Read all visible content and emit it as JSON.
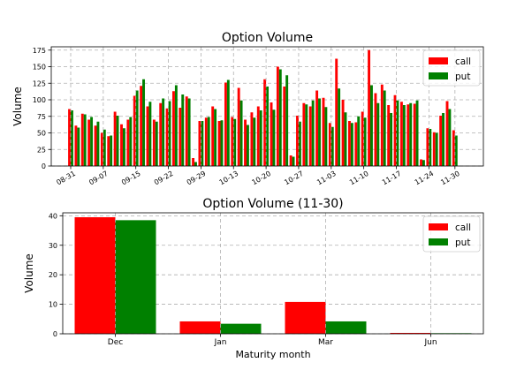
{
  "chart_data": [
    {
      "type": "bar",
      "title": "Option Volume",
      "xlabel": "",
      "ylabel": "Volume",
      "ylim": [
        0,
        180
      ],
      "yticks": [
        0,
        25,
        50,
        75,
        100,
        125,
        150,
        175
      ],
      "grid": true,
      "legend_position": "top-right",
      "colors": {
        "call": "#ff0000",
        "put": "#008000"
      },
      "x_start": "08-31",
      "x_tick_labels": [
        "08-31",
        "09-07",
        "09-15",
        "09-22",
        "09-29",
        "10-13",
        "10-20",
        "10-27",
        "11-03",
        "11-10",
        "11-17",
        "11-24",
        "11-30"
      ],
      "series": [
        {
          "name": "call",
          "values": [
            86,
            61,
            79,
            70,
            61,
            50,
            45,
            82,
            63,
            70,
            106,
            121,
            90,
            70,
            95,
            87,
            113,
            88,
            105,
            12,
            68,
            73,
            90,
            68,
            126,
            74,
            118,
            70,
            81,
            90,
            131,
            96,
            150,
            120,
            16,
            76,
            95,
            90,
            114,
            103,
            65,
            162,
            100,
            68,
            66,
            82,
            175,
            110,
            123,
            92,
            107,
            97,
            93,
            94,
            10,
            57,
            51,
            76,
            98,
            54
          ]
        },
        {
          "name": "put",
          "values": [
            84,
            58,
            78,
            74,
            67,
            55,
            46,
            76,
            57,
            74,
            114,
            131,
            97,
            67,
            102,
            98,
            122,
            108,
            102,
            6,
            68,
            74,
            86,
            69,
            130,
            71,
            99,
            62,
            73,
            84,
            120,
            85,
            146,
            137,
            14,
            67,
            93,
            99,
            102,
            89,
            59,
            117,
            81,
            65,
            75,
            73,
            122,
            95,
            114,
            80,
            99,
            92,
            95,
            99,
            9,
            56,
            50,
            80,
            86,
            46
          ]
        }
      ]
    },
    {
      "type": "bar",
      "title": "Option Volume (11-30)",
      "xlabel": "Maturity month",
      "ylabel": "Volume",
      "ylim": [
        0,
        41
      ],
      "yticks": [
        0,
        10,
        20,
        30,
        40
      ],
      "grid": true,
      "legend_position": "top-right",
      "colors": {
        "call": "#ff0000",
        "put": "#008000"
      },
      "categories": [
        "Dec",
        "Jan",
        "Mar",
        "Jun"
      ],
      "series": [
        {
          "name": "call",
          "values": [
            39.5,
            4.2,
            10.8,
            0.3
          ]
        },
        {
          "name": "put",
          "values": [
            38.5,
            3.4,
            4.2,
            0.2
          ]
        }
      ]
    }
  ]
}
